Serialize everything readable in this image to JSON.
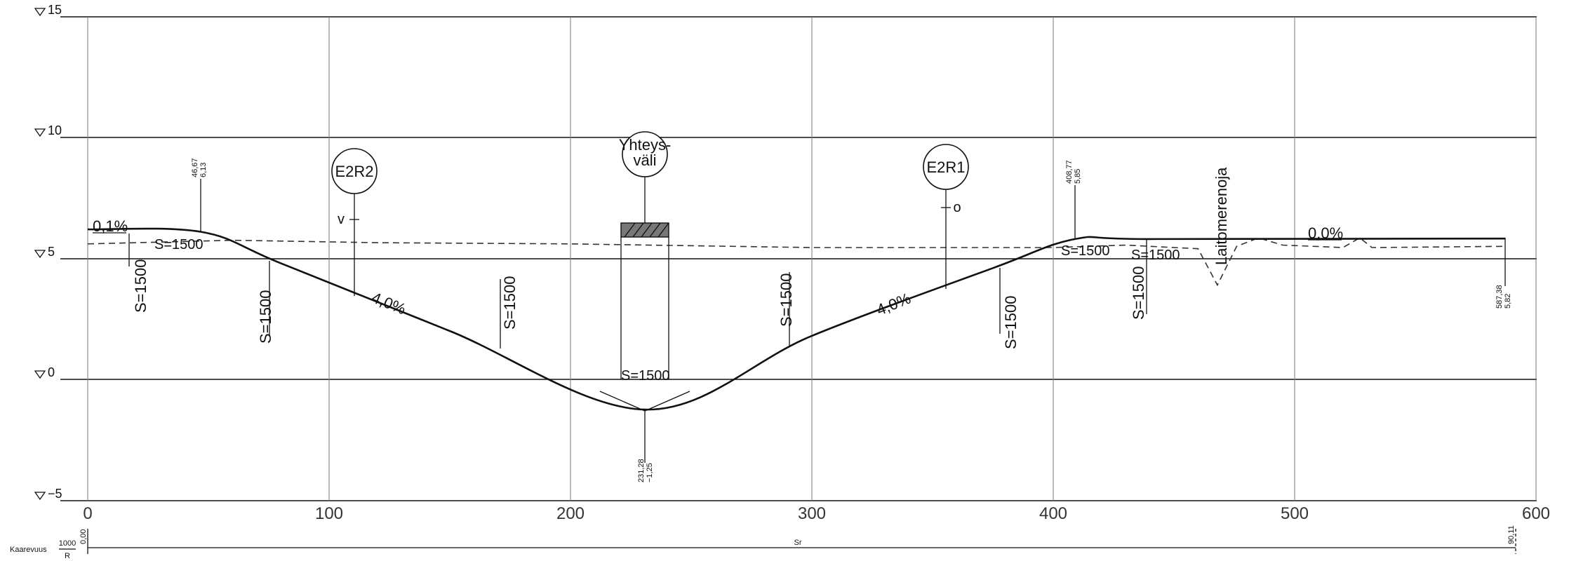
{
  "elevation_axis": {
    "levels": [
      15,
      10,
      5,
      0,
      -5
    ],
    "labels": [
      "15",
      "10",
      "5",
      "0",
      "−5"
    ]
  },
  "station_axis": {
    "ticks": [
      0,
      100,
      200,
      300,
      400,
      500,
      600
    ],
    "labels": [
      "0",
      "100",
      "200",
      "300",
      "400",
      "500",
      "600"
    ]
  },
  "road_profile": {
    "points": [
      [
        0,
        6.2
      ],
      [
        47,
        6.1
      ],
      [
        80,
        4.8
      ],
      [
        150,
        2.0
      ],
      [
        231.28,
        -1.25
      ],
      [
        300,
        1.8
      ],
      [
        375,
        4.6
      ],
      [
        409,
        5.8
      ],
      [
        440,
        5.8
      ],
      [
        587.38,
        5.82
      ]
    ]
  },
  "ground_line": {
    "points": [
      [
        0,
        5.6
      ],
      [
        60,
        5.75
      ],
      [
        120,
        5.65
      ],
      [
        200,
        5.6
      ],
      [
        300,
        5.45
      ],
      [
        400,
        5.45
      ],
      [
        430,
        5.55
      ],
      [
        460,
        5.4
      ],
      [
        468,
        3.9
      ],
      [
        476,
        5.5
      ],
      [
        485,
        5.85
      ],
      [
        495,
        5.55
      ],
      [
        520,
        5.45
      ],
      [
        527,
        5.85
      ],
      [
        532,
        5.45
      ],
      [
        587.38,
        5.5
      ]
    ]
  },
  "grades": [
    {
      "label": "0,1%"
    },
    {
      "label": "4,0%"
    },
    {
      "label": "4,0%"
    },
    {
      "label": "0,0%"
    }
  ],
  "vertical_curves": [
    {
      "label": "S=1500"
    },
    {
      "label": "S=1500"
    },
    {
      "label": "S=1500"
    },
    {
      "label": "S=1500"
    },
    {
      "label": "S=1500"
    },
    {
      "label": "S=1500"
    },
    {
      "label": "S=1500"
    },
    {
      "label": "S=1500"
    },
    {
      "label": "S=1500"
    },
    {
      "label": "S=1500"
    }
  ],
  "pvi_marks": [
    {
      "station": "46,67",
      "elevation": "6,13"
    },
    {
      "station": "408,77",
      "elevation": "5,85"
    },
    {
      "station": "587,38",
      "elevation": "5,82"
    },
    {
      "station": "231,28",
      "elevation": "−1,25"
    }
  ],
  "structures": {
    "bubbles": [
      {
        "lines": [
          "E2R2"
        ]
      },
      {
        "lines": [
          "Yhteys-",
          "väli"
        ]
      },
      {
        "lines": [
          "E2R1"
        ]
      }
    ],
    "ditch_label": "Laitomerenoja",
    "marker_v": "v",
    "marker_o": "o"
  },
  "curvature_row": {
    "title": "Kaarevuus",
    "fraction_top": "1000",
    "fraction_bottom": "R",
    "center_label": "Sr",
    "start_value": "0,00",
    "end_value": "90,11"
  }
}
